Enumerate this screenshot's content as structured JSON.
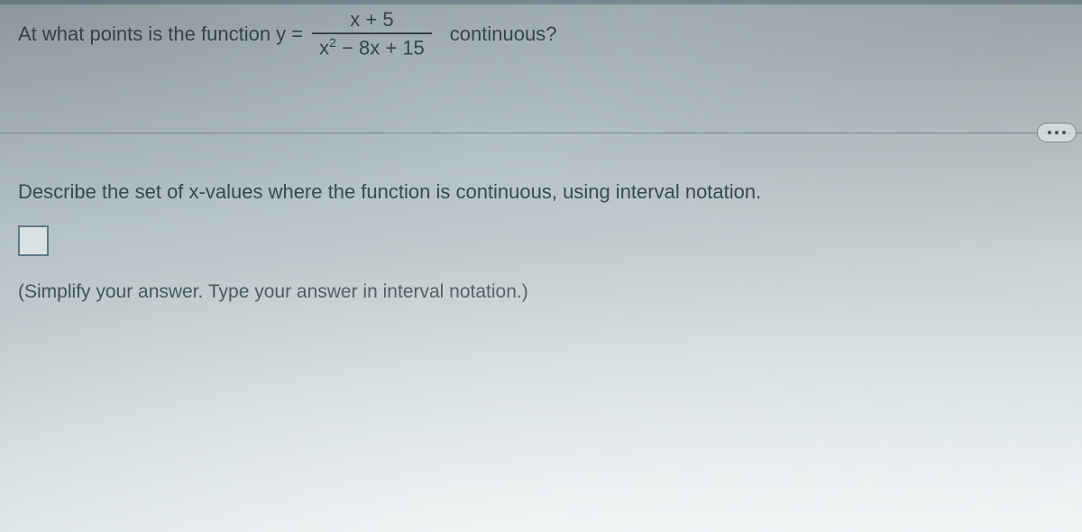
{
  "colors": {
    "text": "#39474c",
    "divider": "rgba(60,75,80,0.45)",
    "input_border": "#5f7a8a"
  },
  "question": {
    "before_fraction": "At what points is the function y =",
    "after_fraction": "continuous?",
    "fraction": {
      "numerator": "x + 5",
      "denominator_before_sup": "x",
      "denominator_sup": "2",
      "denominator_after_sup": " − 8x + 15"
    }
  },
  "more_button": {
    "aria": "More options"
  },
  "describe_text": "Describe the set of x-values where the function is continuous, using interval notation.",
  "answer": {
    "value": "",
    "placeholder": ""
  },
  "hint_text": "(Simplify your answer. Type your answer in interval notation.)"
}
